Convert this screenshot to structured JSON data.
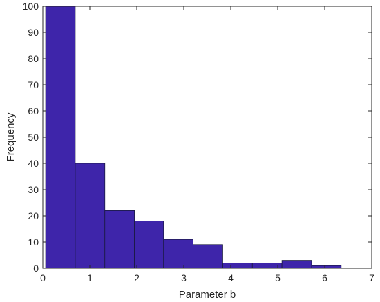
{
  "chart_data": {
    "type": "bar",
    "title": "",
    "xlabel": "Parameter b",
    "ylabel": "Frequency",
    "xlim": [
      0,
      7
    ],
    "ylim": [
      0,
      100
    ],
    "xticks": [
      0,
      1,
      2,
      3,
      4,
      5,
      6,
      7
    ],
    "yticks": [
      0,
      10,
      20,
      30,
      40,
      50,
      60,
      70,
      80,
      90,
      100
    ],
    "grid": false,
    "legend": "none",
    "bar_color": "#3e25aa",
    "edge_color": "#1a1a40",
    "bins": [
      {
        "x0": 0.06,
        "x1": 0.69,
        "value": 100
      },
      {
        "x0": 0.69,
        "x1": 1.32,
        "value": 40
      },
      {
        "x0": 1.32,
        "x1": 1.95,
        "value": 22
      },
      {
        "x0": 1.95,
        "x1": 2.57,
        "value": 18
      },
      {
        "x0": 2.57,
        "x1": 3.2,
        "value": 11
      },
      {
        "x0": 3.2,
        "x1": 3.83,
        "value": 9
      },
      {
        "x0": 3.83,
        "x1": 4.46,
        "value": 2
      },
      {
        "x0": 4.46,
        "x1": 5.09,
        "value": 2
      },
      {
        "x0": 5.09,
        "x1": 5.72,
        "value": 3
      },
      {
        "x0": 5.72,
        "x1": 6.01,
        "value": 1
      },
      {
        "x0": 6.01,
        "x1": 6.35,
        "value": 1
      }
    ]
  }
}
